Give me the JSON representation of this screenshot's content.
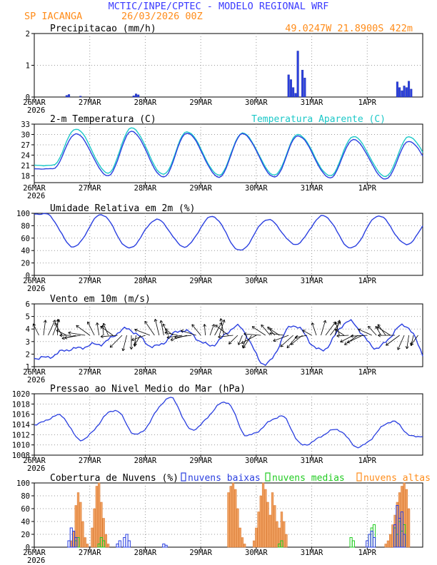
{
  "header": {
    "title": "MCTIC/INPE/CPTEC - MODELO REGIONAL WRF",
    "station": "SP IACANGA",
    "run": "26/03/2026 00Z",
    "coords": "49.0247W 21.8900S 422m"
  },
  "colors": {
    "title": "#3a3aff",
    "orange": "#ff8c1a",
    "cyan": "#1cc8c8",
    "blue": "#2a3fe0",
    "green": "#22cc22",
    "bar_orange": "#f0a060"
  },
  "x_ticks": [
    "26MAR",
    "27MAR",
    "28MAR",
    "29MAR",
    "30MAR",
    "31MAR",
    "1APR"
  ],
  "year_label": "2026",
  "chart_data": [
    {
      "id": "precip",
      "type": "bar",
      "title": "Precipitacao (mm/h)",
      "ylim": [
        0,
        2
      ],
      "yticks": [
        "0",
        "1",
        "2"
      ],
      "x_unit": "hours since 26/03/2026 00Z",
      "series": [
        {
          "name": "Precipitacao",
          "color": "#2a3fe0",
          "x": [
            14,
            15,
            20,
            43,
            44,
            45,
            110,
            111,
            112,
            113,
            114,
            116,
            117,
            157,
            158,
            159,
            160,
            161,
            162,
            163
          ],
          "values": [
            0.05,
            0.08,
            0.03,
            0.04,
            0.1,
            0.07,
            0.7,
            0.55,
            0.3,
            0.12,
            1.45,
            0.85,
            0.6,
            0.48,
            0.3,
            0.2,
            0.35,
            0.3,
            0.5,
            0.25
          ]
        }
      ]
    },
    {
      "id": "temp",
      "type": "line",
      "title": "2-m Temperatura (C)",
      "legend": "Temperatura Aparente (C)",
      "ylim": [
        16,
        33
      ],
      "yticks": [
        "18",
        "21",
        "24",
        "27",
        "30",
        "33"
      ],
      "series": [
        {
          "name": "Temperatura",
          "color": "#2a3fe0",
          "min": [
            20.0,
            18.0,
            17.6,
            17.6,
            17.6,
            17.4,
            17.0,
            16.8
          ],
          "max": [
            30.2,
            30.9,
            30.4,
            30.2,
            29.6,
            28.5,
            28.0
          ]
        },
        {
          "name": "Temperatura Aparente",
          "color": "#1cc8c8",
          "min": [
            21.0,
            18.8,
            18.4,
            18.2,
            18.2,
            18.0,
            17.8,
            17.6
          ],
          "max": [
            31.6,
            31.9,
            30.8,
            30.4,
            30.0,
            29.4,
            29.3
          ]
        }
      ]
    },
    {
      "id": "rh",
      "type": "line",
      "title": "Umidade Relativa em 2m (%)",
      "ylim": [
        0,
        100
      ],
      "yticks": [
        "0",
        "20",
        "40",
        "60",
        "80",
        "100"
      ],
      "series": [
        {
          "name": "Umidade Relativa",
          "color": "#2a3fe0",
          "max": [
            99,
            98,
            90,
            95,
            90,
            96,
            96,
            97,
            95
          ],
          "min": [
            46,
            44,
            46,
            40,
            50,
            44,
            50,
            46
          ]
        }
      ]
    },
    {
      "id": "wind",
      "type": "line",
      "title": "Vento em 10m (m/s)",
      "ylim": [
        1,
        6
      ],
      "yticks": [
        "1",
        "2",
        "3",
        "4",
        "5",
        "6"
      ],
      "series": [
        {
          "name": "Vento",
          "color": "#2a3fe0",
          "max": [
            2.4,
            4.0,
            3.9,
            4.2,
            4.3,
            4.6,
            4.3,
            3.8
          ],
          "min": [
            1.7,
            2.8,
            2.6,
            2.7,
            1.2,
            2.3,
            2.5,
            1.2
          ]
        }
      ]
    },
    {
      "id": "pres",
      "type": "line",
      "title": "Pressao ao Nivel Medio do Mar (hPa)",
      "ylim": [
        1008,
        1020
      ],
      "yticks": [
        "1008",
        "1010",
        "1012",
        "1014",
        "1016",
        "1018",
        "1020"
      ],
      "series": [
        {
          "name": "Pressao",
          "color": "#2a3fe0",
          "max": [
            1015.8,
            1016.8,
            1019.2,
            1018.4,
            1015.6,
            1013.0,
            1014.6,
            1012.8
          ],
          "min": [
            1011.0,
            1012.0,
            1013.0,
            1011.8,
            1010.0,
            1009.6,
            1011.6
          ]
        }
      ]
    },
    {
      "id": "clouds",
      "type": "bar",
      "title": "Cobertura de Nuvens (%)",
      "legend": [
        "nuvens baixas",
        "nuvens medias",
        "nuvens altas"
      ],
      "ylim": [
        0,
        100
      ],
      "yticks": [
        "0",
        "20",
        "40",
        "60",
        "80",
        "100"
      ],
      "series": [
        {
          "name": "nuvens altas",
          "color": "#f0a060",
          "x": [
            16,
            17,
            18,
            19,
            20,
            21,
            22,
            23,
            25,
            26,
            27,
            28,
            29,
            30,
            31,
            32,
            84,
            85,
            86,
            87,
            88,
            89,
            90,
            91,
            95,
            96,
            97,
            98,
            99,
            100,
            101,
            102,
            103,
            104,
            105,
            106,
            107,
            108,
            109,
            152,
            153,
            154,
            155,
            156,
            157,
            158,
            159,
            160,
            161,
            162
          ],
          "values": [
            10,
            25,
            65,
            85,
            70,
            40,
            15,
            5,
            30,
            60,
            95,
            100,
            70,
            45,
            20,
            5,
            85,
            95,
            100,
            90,
            60,
            30,
            15,
            5,
            10,
            30,
            55,
            80,
            100,
            90,
            70,
            50,
            85,
            65,
            40,
            30,
            55,
            40,
            20,
            5,
            10,
            20,
            35,
            50,
            70,
            85,
            95,
            100,
            90,
            60
          ]
        },
        {
          "name": "nuvens baixas",
          "color": "#2a3fe0",
          "x": [
            15,
            16,
            17,
            18,
            36,
            37,
            39,
            40,
            41,
            56,
            57,
            144,
            145,
            146,
            147,
            156,
            157,
            158,
            159,
            160
          ],
          "values": [
            10,
            30,
            25,
            15,
            5,
            10,
            15,
            20,
            10,
            5,
            3,
            10,
            20,
            25,
            15,
            35,
            65,
            45,
            55,
            20
          ]
        },
        {
          "name": "nuvens medias",
          "color": "#22cc22",
          "x": [
            18,
            19,
            28,
            29,
            30,
            106,
            107,
            137,
            138,
            145,
            146,
            147,
            156,
            157,
            158,
            159,
            160
          ],
          "values": [
            10,
            15,
            5,
            15,
            10,
            5,
            10,
            15,
            10,
            20,
            30,
            35,
            30,
            20,
            40,
            25,
            35
          ]
        }
      ]
    }
  ]
}
